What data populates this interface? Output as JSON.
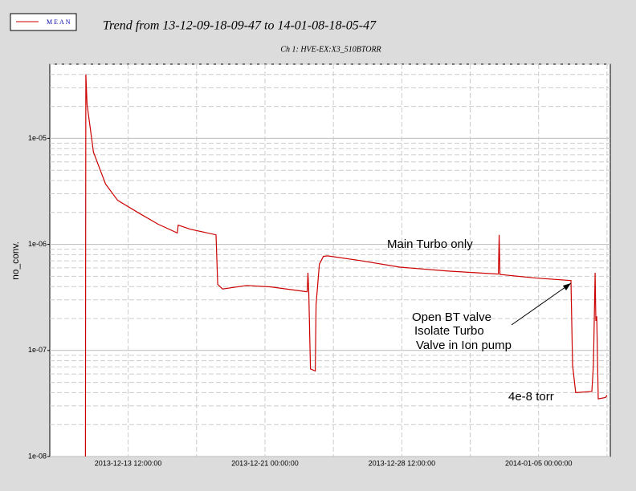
{
  "chart_data": {
    "type": "line",
    "title": "Trend from 13-12-09-18-09-47 to 14-01-08-18-05-47",
    "subtitle": "Ch 1: HVE-EX:X3_510BTORR",
    "ylabel": "no_conv.",
    "ylog": true,
    "grid": true,
    "legend": "top-left",
    "xlim": [
      "2013-12-09 04:54:00",
      "2014-01-08 22:18:00"
    ],
    "xticks": [
      "2013-12-13 12:00:00",
      "2013-12-21 00:00:00",
      "2013-12-28 12:00:00",
      "2014-01-05 00:00:00"
    ],
    "ylim": [
      1e-08,
      5e-05
    ],
    "yticks": [
      {
        "value": 1e-08,
        "label": "1e-08"
      },
      {
        "value": 1e-07,
        "label": "1e-07"
      },
      {
        "value": 1e-06,
        "label": "1e-06"
      },
      {
        "value": 1e-05,
        "label": "1e-05"
      }
    ],
    "x": [
      "2013-12-11 03:48",
      "2013-12-11 04:18",
      "2013-12-11 05:54",
      "2013-12-11 14:24",
      "2013-12-12 06:18",
      "2013-12-12 22:12",
      "2013-12-14 00:42",
      "2013-12-15 03:18",
      "2013-12-16 04:42",
      "2013-12-16 05:48",
      "2013-12-16 21:42",
      "2013-12-18 07:36",
      "2013-12-18 09:48",
      "2013-12-18 16:06",
      "2013-12-20 00:00",
      "2013-12-21 07:48",
      "2013-12-23 07:30",
      "2013-12-23 08:36",
      "2013-12-23 09:36",
      "2013-12-23 11:48",
      "2013-12-23 18:12",
      "2013-12-23 19:12",
      "2013-12-23 23:30",
      "2013-12-24 04:48",
      "2013-12-24 10:06",
      "2013-12-26 04:30",
      "2013-12-28 09:36",
      "2013-12-31 01:12",
      "2014-01-02 19:00",
      "2014-01-02 20:06",
      "2014-01-02 21:06",
      "2014-01-04 21:54",
      "2014-01-06 18:30",
      "2014-01-06 20:36",
      "2014-01-07 00:48",
      "2014-01-07 22:00",
      "2014-01-08 00:06",
      "2014-01-08 02:18",
      "2014-01-08 03:18",
      "2014-01-08 04:24",
      "2014-01-08 06:30",
      "2014-01-08 16:00",
      "2014-01-08 18:05"
    ],
    "series": [
      {
        "name": "MEAN",
        "color": "#cc0000",
        "values": [
          1e-08,
          4e-05,
          2.1e-05,
          7.4e-06,
          3.7e-06,
          2.6e-06,
          2e-06,
          1.55e-06,
          1.28e-06,
          1.52e-06,
          1.39e-06,
          1.23e-06,
          4.2e-07,
          3.8e-07,
          4.1e-07,
          3.97e-07,
          3.57e-07,
          5.4e-07,
          3.6e-07,
          6.7e-08,
          6.4e-08,
          2.7e-07,
          6.5e-07,
          7.7e-07,
          7.8e-07,
          7.05e-07,
          6.1e-07,
          5.6e-07,
          5.25e-07,
          1.23e-06,
          5.2e-07,
          4.8e-07,
          4.56e-07,
          7.3e-08,
          4e-08,
          4.1e-08,
          7.3e-08,
          5.4e-07,
          1.9e-07,
          2.1e-07,
          3.5e-08,
          3.6e-08,
          3.8e-08
        ]
      }
    ],
    "annotations": [
      "Main Turbo only",
      "Open BT valve",
      "Isolate Turbo",
      "Valve in Ion pump",
      "4e-8 torr"
    ]
  }
}
